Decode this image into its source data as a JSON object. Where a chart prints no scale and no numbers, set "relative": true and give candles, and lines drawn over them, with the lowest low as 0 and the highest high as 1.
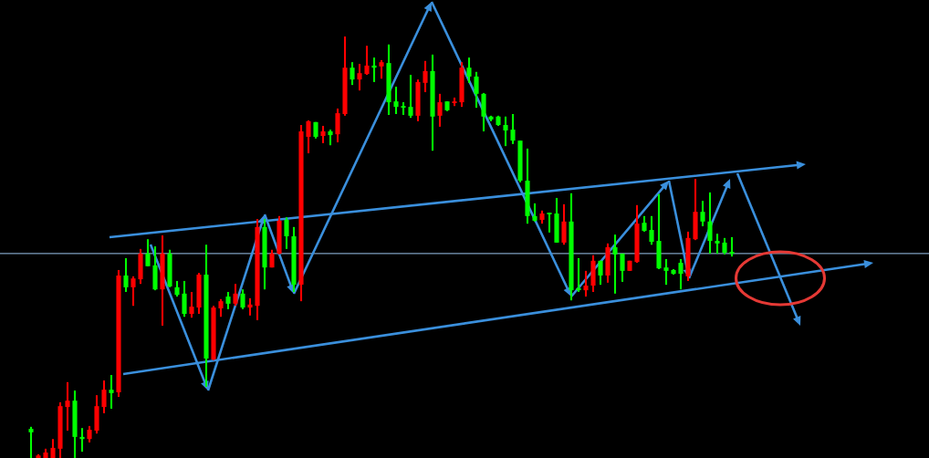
{
  "chart_data": {
    "type": "candlestick",
    "relative": true,
    "tick_labels": false,
    "legend": false,
    "categories": [
      null,
      null,
      null,
      null,
      null,
      null,
      null,
      null,
      null,
      null,
      null,
      null,
      null,
      null,
      null,
      null,
      null,
      null,
      null,
      null,
      null,
      null,
      null,
      null,
      null,
      null,
      null,
      null,
      null,
      null,
      null,
      null,
      null,
      null,
      null,
      null,
      null,
      null,
      null,
      null,
      null,
      null,
      null,
      null,
      null,
      null,
      null,
      null,
      null,
      null,
      null,
      null,
      null,
      null,
      null,
      null,
      null,
      null,
      null,
      null,
      null,
      null,
      null,
      null,
      null,
      null,
      null,
      null,
      null,
      null,
      null,
      null,
      null,
      null,
      null,
      null,
      null,
      null,
      null,
      null,
      null,
      null,
      null,
      null,
      null,
      null,
      null,
      null,
      null,
      null,
      null,
      null,
      null,
      null,
      null,
      null,
      null
    ],
    "ohlc": [
      [
        0.069,
        0.074,
        0,
        0.061
      ],
      [
        0,
        0.009,
        0,
        0.006
      ],
      [
        0,
        0.022,
        0,
        0.013
      ],
      [
        0,
        0.045,
        0,
        0.024
      ],
      [
        0.022,
        0.132,
        0,
        0.123
      ],
      [
        0.121,
        0.18,
        0.065,
        0.136
      ],
      [
        0.136,
        0.16,
        0,
        0.05
      ],
      [
        0.05,
        0.071,
        0.015,
        0.045
      ],
      [
        0.045,
        0.076,
        0.037,
        0.067
      ],
      [
        0.065,
        0.149,
        0.058,
        0.123
      ],
      [
        0.121,
        0.184,
        0.106,
        0.162
      ],
      [
        0.162,
        0.197,
        0.117,
        0.154
      ],
      [
        0.156,
        0.446,
        0.145,
        0.433
      ],
      [
        0.433,
        0.474,
        0.394,
        0.405
      ],
      [
        0.405,
        0.431,
        0.361,
        0.426
      ],
      [
        0.424,
        0.496,
        0.413,
        0.485
      ],
      [
        0.485,
        0.519,
        0.455,
        0.455
      ],
      [
        0.457,
        0.502,
        0.398,
        0.4
      ],
      [
        0.4,
        0.528,
        0.314,
        0.485
      ],
      [
        0.485,
        0.494,
        0.405,
        0.407
      ],
      [
        0.405,
        0.42,
        0.383,
        0.387
      ],
      [
        0.39,
        0.42,
        0.335,
        0.342
      ],
      [
        0.342,
        0.394,
        0.333,
        0.359
      ],
      [
        0.357,
        0.439,
        0.342,
        0.435
      ],
      [
        0.435,
        0.506,
        0.169,
        0.236
      ],
      [
        0.234,
        0.361,
        0.232,
        0.357
      ],
      [
        0.355,
        0.377,
        0.335,
        0.372
      ],
      [
        0.383,
        0.394,
        0.353,
        0.366
      ],
      [
        0.366,
        0.413,
        0.361,
        0.39
      ],
      [
        0.39,
        0.4,
        0.353,
        0.357
      ],
      [
        0.357,
        0.379,
        0.338,
        0.364
      ],
      [
        0.361,
        0.567,
        0.327,
        0.548
      ],
      [
        0.548,
        0.567,
        0.4,
        0.452
      ],
      [
        0.452,
        0.494,
        0.452,
        0.485
      ],
      [
        0.485,
        0.574,
        0.483,
        0.563
      ],
      [
        0.565,
        0.571,
        0.496,
        0.526
      ],
      [
        0.526,
        0.548,
        0.394,
        0.411
      ],
      [
        0.411,
        0.79,
        0.372,
        0.775
      ],
      [
        0.762,
        0.801,
        0.723,
        0.799
      ],
      [
        0.797,
        0.797,
        0.758,
        0.762
      ],
      [
        0.764,
        0.788,
        0.747,
        0.775
      ],
      [
        0.775,
        0.779,
        0.742,
        0.766
      ],
      [
        0.768,
        0.829,
        0.749,
        0.818
      ],
      [
        0.816,
        1,
        0.812,
        0.926
      ],
      [
        0.926,
        0.939,
        0.885,
        0.898
      ],
      [
        0.898,
        0.935,
        0.872,
        0.913
      ],
      [
        0.911,
        0.978,
        0.909,
        0.931
      ],
      [
        0.931,
        0.95,
        0.892,
        0.926
      ],
      [
        0.929,
        0.944,
        0.9,
        0.939
      ],
      [
        0.937,
        0.981,
        0.814,
        0.844
      ],
      [
        0.846,
        0.881,
        0.816,
        0.833
      ],
      [
        0.835,
        0.844,
        0.814,
        0.831
      ],
      [
        0.833,
        0.909,
        0.807,
        0.812
      ],
      [
        0.812,
        0.898,
        0.799,
        0.892
      ],
      [
        0.89,
        0.942,
        0.868,
        0.918
      ],
      [
        0.918,
        0.957,
        0.729,
        0.81
      ],
      [
        0.812,
        0.864,
        0.786,
        0.844
      ],
      [
        0.846,
        0.846,
        0.823,
        0.825
      ],
      [
        0.842,
        0.855,
        0.835,
        0.846
      ],
      [
        0.844,
        0.939,
        0.833,
        0.926
      ],
      [
        0.926,
        0.95,
        0.89,
        0.905
      ],
      [
        0.905,
        0.916,
        0.831,
        0.864
      ],
      [
        0.864,
        0.866,
        0.775,
        0.81
      ],
      [
        0.81,
        0.812,
        0.799,
        0.803
      ],
      [
        0.81,
        0.812,
        0.788,
        0.79
      ],
      [
        0.79,
        0.81,
        0.74,
        0.777
      ],
      [
        0.779,
        0.816,
        0.745,
        0.753
      ],
      [
        0.753,
        0.753,
        0.654,
        0.658
      ],
      [
        0.658,
        0.734,
        0.556,
        0.574
      ],
      [
        0.574,
        0.604,
        0.561,
        0.563
      ],
      [
        0.565,
        0.587,
        0.556,
        0.58
      ],
      [
        0.582,
        0.582,
        0.535,
        0.578
      ],
      [
        0.58,
        0.617,
        0.511,
        0.511
      ],
      [
        0.511,
        0.602,
        0.506,
        0.561
      ],
      [
        0.561,
        0.628,
        0.374,
        0.398
      ],
      [
        0.403,
        0.474,
        0.394,
        0.398
      ],
      [
        0.398,
        0.444,
        0.383,
        0.409
      ],
      [
        0.409,
        0.481,
        0.394,
        0.468
      ],
      [
        0.468,
        0.468,
        0.411,
        0.433
      ],
      [
        0.433,
        0.509,
        0.416,
        0.5
      ],
      [
        0.5,
        0.53,
        0.39,
        0.483
      ],
      [
        0.485,
        0.485,
        0.418,
        0.444
      ],
      [
        0.444,
        0.468,
        0.444,
        0.468
      ],
      [
        0.465,
        0.6,
        0.463,
        0.556
      ],
      [
        0.558,
        0.574,
        0.537,
        0.539
      ],
      [
        0.541,
        0.574,
        0.506,
        0.513
      ],
      [
        0.515,
        0.626,
        0.448,
        0.45
      ],
      [
        0.452,
        0.472,
        0.411,
        0.444
      ],
      [
        0.446,
        0.448,
        0.435,
        0.437
      ],
      [
        0.463,
        0.472,
        0.4,
        0.437
      ],
      [
        0.431,
        0.537,
        0.42,
        0.522
      ],
      [
        0.519,
        0.662,
        0.517,
        0.584
      ],
      [
        0.584,
        0.61,
        0.55,
        0.561
      ],
      [
        0.561,
        0.63,
        0.485,
        0.515
      ],
      [
        0.515,
        0.532,
        0.485,
        0.509
      ],
      [
        0.511,
        0.522,
        0.483,
        0.487
      ],
      [
        0.489,
        0.524,
        0.478,
        0.485
      ]
    ],
    "colors": [
      "#00ff00",
      "#ff0000",
      "#ff0000",
      "#ff0000",
      "#ff0000",
      "#ff0000",
      "#00ff00",
      "#00ff00",
      "#ff0000",
      "#ff0000",
      "#ff0000",
      "#00ff00",
      "#ff0000",
      "#00ff00",
      "#ff0000",
      "#ff0000",
      "#00ff00",
      "#00ff00",
      "#ff0000",
      "#00ff00",
      "#00ff00",
      "#00ff00",
      "#ff0000",
      "#ff0000",
      "#00ff00",
      "#ff0000",
      "#ff0000",
      "#00ff00",
      "#ff0000",
      "#00ff00",
      "#ff0000",
      "#ff0000",
      "#00ff00",
      "#ff0000",
      "#ff0000",
      "#00ff00",
      "#00ff00",
      "#ff0000",
      "#ff0000",
      "#00ff00",
      "#ff0000",
      "#00ff00",
      "#ff0000",
      "#ff0000",
      "#00ff00",
      "#ff0000",
      "#ff0000",
      "#00ff00",
      "#ff0000",
      "#00ff00",
      "#00ff00",
      "#00ff00",
      "#00ff00",
      "#ff0000",
      "#ff0000",
      "#00ff00",
      "#ff0000",
      "#00ff00",
      "#ff0000",
      "#ff0000",
      "#00ff00",
      "#00ff00",
      "#00ff00",
      "#00ff00",
      "#00ff00",
      "#00ff00",
      "#00ff00",
      "#00ff00",
      "#00ff00",
      "#00ff00",
      "#ff0000",
      "#00ff00",
      "#00ff00",
      "#ff0000",
      "#00ff00",
      "#00ff00",
      "#ff0000",
      "#ff0000",
      "#00ff00",
      "#ff0000",
      "#00ff00",
      "#00ff00",
      "#ff0000",
      "#ff0000",
      "#00ff00",
      "#00ff00",
      "#00ff00",
      "#00ff00",
      "#00ff00",
      "#00ff00",
      "#ff0000",
      "#ff0000",
      "#00ff00",
      "#00ff00",
      "#00ff00",
      "#00ff00",
      "#00ff00"
    ],
    "ref_lines": [
      {
        "axis": "y",
        "value": 0.485,
        "color": "#7f9fc0",
        "line_style": "solid"
      }
    ]
  }
}
